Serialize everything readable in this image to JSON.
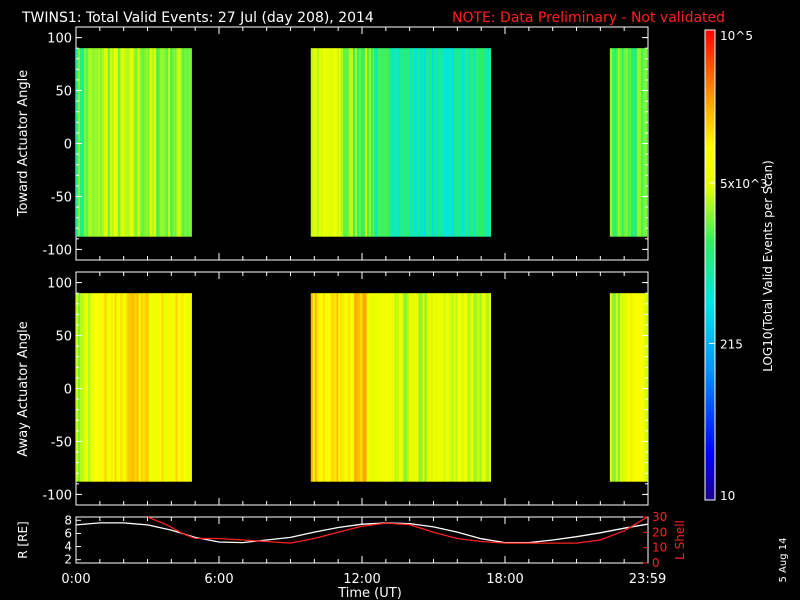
{
  "title": "TWINS1: Total Valid Events: 27 Jul (day 208), 2014",
  "note": "NOTE: Data Preliminary - Not validated",
  "date_stamp": "5 Aug 14",
  "colors": {
    "background": "#000000",
    "axis": "#ffffff",
    "note": "#ff2020",
    "lshell": "#ff2020",
    "radius": "#ffffff"
  },
  "colorbar": {
    "label": "LOG10(Total Valid Events per Scan)",
    "tick_labels": [
      "10",
      "215",
      "5x10^3",
      "10^5"
    ],
    "tick_values": [
      10,
      215,
      5000,
      100000
    ],
    "scale": "log",
    "colormap": "rainbow"
  },
  "x_axis": {
    "label": "Time (UT)",
    "tick_labels": [
      "0:00",
      "6:00",
      "12:00",
      "18:00",
      "23:59"
    ],
    "tick_hours": [
      0,
      6,
      12,
      18,
      23.98
    ],
    "range_hours": [
      0,
      24
    ]
  },
  "chart_data": [
    {
      "type": "heatmap",
      "ylabel": "Toward Actuator Angle",
      "ylim": [
        -110,
        110
      ],
      "yticks": [
        100,
        50,
        0,
        -50,
        -100
      ],
      "angle_range": [
        -88,
        90
      ],
      "data_intervals_hours": [
        [
          0.0,
          4.85
        ],
        [
          9.85,
          17.4
        ],
        [
          22.4,
          23.99
        ]
      ],
      "segments": [
        {
          "t": [
            0.0,
            0.35
          ],
          "log10": 3.2
        },
        {
          "t": [
            0.35,
            1.0
          ],
          "log10": 3.4
        },
        {
          "t": [
            1.0,
            2.0
          ],
          "log10": 3.55
        },
        {
          "t": [
            2.0,
            3.2
          ],
          "log10": 3.5
        },
        {
          "t": [
            3.2,
            4.85
          ],
          "log10": 3.45
        },
        {
          "t": [
            9.85,
            11.2
          ],
          "log10": 3.65
        },
        {
          "t": [
            11.2,
            12.5
          ],
          "log10": 3.4
        },
        {
          "t": [
            12.5,
            14.0
          ],
          "log10": 3.05
        },
        {
          "t": [
            14.0,
            16.0
          ],
          "log10": 2.85
        },
        {
          "t": [
            16.0,
            17.4
          ],
          "log10": 2.95
        },
        {
          "t": [
            22.4,
            23.2
          ],
          "log10": 3.3
        },
        {
          "t": [
            23.2,
            23.99
          ],
          "log10": 3.2
        }
      ]
    },
    {
      "type": "heatmap",
      "ylabel": "Away Actuator Angle",
      "ylim": [
        -110,
        110
      ],
      "yticks": [
        100,
        50,
        0,
        -50,
        -100
      ],
      "angle_range": [
        -88,
        90
      ],
      "data_intervals_hours": [
        [
          0.0,
          4.85
        ],
        [
          9.85,
          17.4
        ],
        [
          22.4,
          23.99
        ]
      ],
      "segments": [
        {
          "t": [
            0.0,
            0.6
          ],
          "log10": 3.55
        },
        {
          "t": [
            0.6,
            1.2
          ],
          "log10": 3.9
        },
        {
          "t": [
            1.2,
            3.5
          ],
          "log10": 4.05
        },
        {
          "t": [
            3.5,
            4.85
          ],
          "log10": 3.95
        },
        {
          "t": [
            9.85,
            11.0
          ],
          "log10": 4.1
        },
        {
          "t": [
            11.0,
            12.2
          ],
          "log10": 4.15
        },
        {
          "t": [
            12.2,
            13.2
          ],
          "log10": 3.75
        },
        {
          "t": [
            13.2,
            15.0
          ],
          "log10": 3.6
        },
        {
          "t": [
            15.0,
            17.4
          ],
          "log10": 3.7
        },
        {
          "t": [
            22.4,
            23.0
          ],
          "log10": 3.6
        },
        {
          "t": [
            23.0,
            23.99
          ],
          "log10": 3.85
        }
      ]
    },
    {
      "type": "line",
      "ylabel": "R [RE]",
      "ylabel_right": "L Shell",
      "ylim": [
        1.5,
        8.5
      ],
      "yticks": [
        2,
        4,
        6,
        8
      ],
      "y2lim": [
        0,
        30
      ],
      "y2ticks": [
        0,
        10,
        20,
        30
      ],
      "series": [
        {
          "name": "R [RE]",
          "axis": "left",
          "x": [
            0,
            1,
            2,
            3,
            4,
            5,
            6,
            7,
            8,
            9,
            10,
            11,
            12,
            13,
            14,
            15,
            16,
            17,
            18,
            19,
            20,
            21,
            22,
            23,
            23.98
          ],
          "y": [
            7.3,
            7.6,
            7.6,
            7.3,
            6.5,
            5.4,
            4.7,
            4.6,
            5.0,
            5.4,
            6.2,
            6.9,
            7.4,
            7.6,
            7.5,
            7.0,
            6.2,
            5.2,
            4.6,
            4.6,
            5.0,
            5.5,
            6.1,
            6.8,
            7.4
          ]
        },
        {
          "name": "L Shell",
          "axis": "right",
          "x": [
            3,
            3.8,
            4.5,
            5,
            6,
            7,
            8,
            9,
            10,
            11,
            12,
            13,
            14,
            15,
            16,
            17,
            18,
            19,
            20,
            21,
            22,
            23,
            23.98
          ],
          "y": [
            30,
            25,
            19,
            16,
            16,
            15,
            14,
            13,
            16,
            20,
            24,
            26,
            25,
            20,
            16,
            14,
            13,
            13,
            13,
            13,
            15,
            21,
            30
          ]
        }
      ]
    }
  ]
}
